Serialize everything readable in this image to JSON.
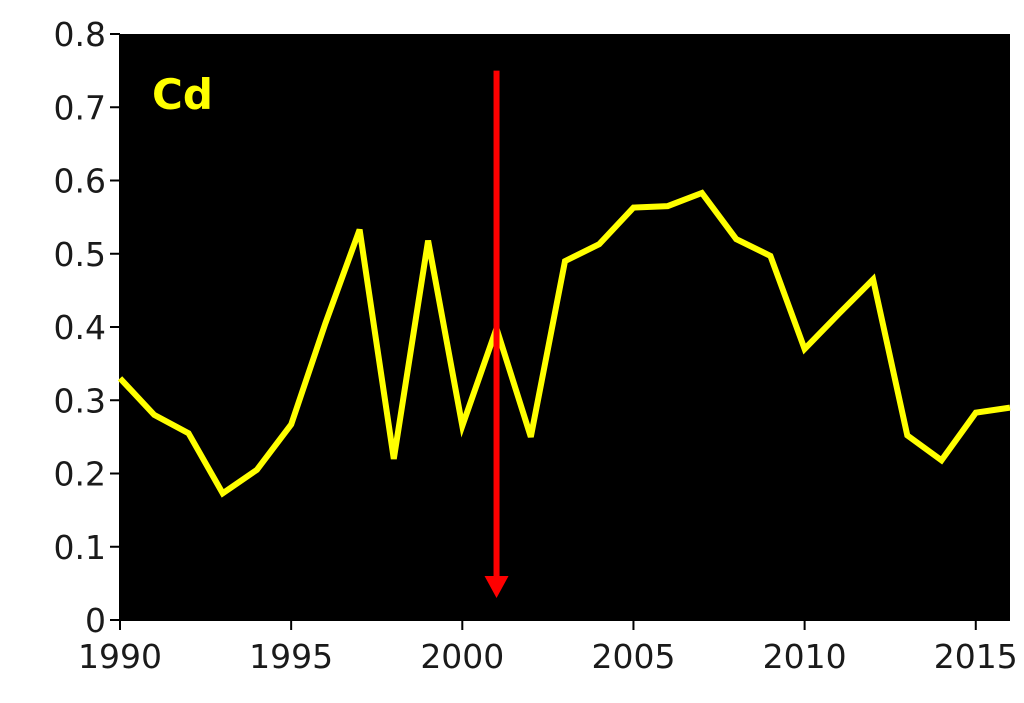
{
  "chart_data": {
    "type": "line",
    "series_label": "Cd",
    "x": [
      1990,
      1991,
      1992,
      1993,
      1994,
      1995,
      1996,
      1997,
      1998,
      1999,
      2000,
      2001,
      2002,
      2003,
      2004,
      2005,
      2006,
      2007,
      2008,
      2009,
      2010,
      2011,
      2012,
      2013,
      2014,
      2015,
      2016
    ],
    "series": [
      {
        "name": "Cd",
        "color": "#ffff00",
        "values": [
          0.33,
          0.28,
          0.255,
          0.173,
          0.205,
          0.267,
          0.405,
          0.533,
          0.22,
          0.518,
          0.265,
          0.398,
          0.25,
          0.49,
          0.513,
          0.563,
          0.565,
          0.583,
          0.52,
          0.497,
          0.37,
          0.418,
          0.465,
          0.252,
          0.218,
          0.283,
          0.29
        ]
      }
    ],
    "xlim": [
      1990,
      2016
    ],
    "ylim": [
      0,
      0.8
    ],
    "x_ticks": [
      "1990",
      "1995",
      "2000",
      "2005",
      "2010",
      "2015"
    ],
    "y_ticks": [
      "0",
      "0.1",
      "0.2",
      "0.3",
      "0.4",
      "0.5",
      "0.6",
      "0.7",
      "0.8"
    ],
    "xlabel": "",
    "ylabel": "",
    "grid": false,
    "annotation": {
      "type": "arrow",
      "color": "#ff0000",
      "x": 2001,
      "y_from": 0.75,
      "y_to": 0.03
    },
    "plot_background": "#000000"
  }
}
